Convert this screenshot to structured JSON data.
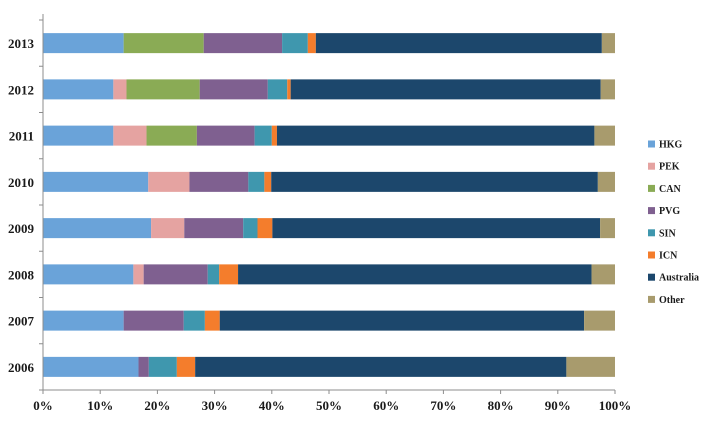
{
  "chart_data": {
    "type": "bar",
    "orientation": "horizontal",
    "stacked": "percent",
    "title": "",
    "xlabel": "",
    "ylabel": "",
    "xlim": [
      0,
      100
    ],
    "x_ticks": [
      "0%",
      "10%",
      "20%",
      "30%",
      "40%",
      "50%",
      "60%",
      "70%",
      "80%",
      "90%",
      "100%"
    ],
    "categories": [
      "2013",
      "2012",
      "2011",
      "2010",
      "2009",
      "2008",
      "2007",
      "2006"
    ],
    "grid": false,
    "legend_position": "right",
    "series": [
      {
        "name": "HKG",
        "color": "#6aa3d9",
        "values": [
          14.1,
          12.3,
          12.3,
          18.4,
          18.9,
          15.8,
          14.1,
          16.7
        ]
      },
      {
        "name": "PEK",
        "color": "#e5a3a1",
        "values": [
          0,
          2.3,
          5.8,
          7.2,
          5.8,
          1.8,
          0,
          0
        ]
      },
      {
        "name": "CAN",
        "color": "#8aab55",
        "values": [
          14.0,
          12.8,
          8.8,
          0,
          0,
          0,
          0,
          0
        ]
      },
      {
        "name": "PVG",
        "color": "#7f6090",
        "values": [
          13.7,
          11.9,
          10.1,
          10.3,
          10.3,
          11.2,
          10.5,
          1.8
        ]
      },
      {
        "name": "SIN",
        "color": "#3f97ae",
        "values": [
          4.5,
          3.4,
          3.0,
          2.8,
          2.5,
          2.0,
          3.7,
          4.9
        ]
      },
      {
        "name": "ICN",
        "color": "#f47d2c",
        "values": [
          1.4,
          0.6,
          0.9,
          1.2,
          2.6,
          3.3,
          2.6,
          3.2
        ]
      },
      {
        "name": "Australia",
        "color": "#1c476c",
        "values": [
          50.0,
          54.2,
          55.5,
          57.1,
          57.3,
          61.8,
          63.7,
          64.9
        ]
      },
      {
        "name": "Other",
        "color": "#a89b6d",
        "values": [
          2.3,
          2.5,
          3.6,
          3.0,
          2.6,
          4.1,
          5.4,
          8.5
        ]
      }
    ]
  }
}
